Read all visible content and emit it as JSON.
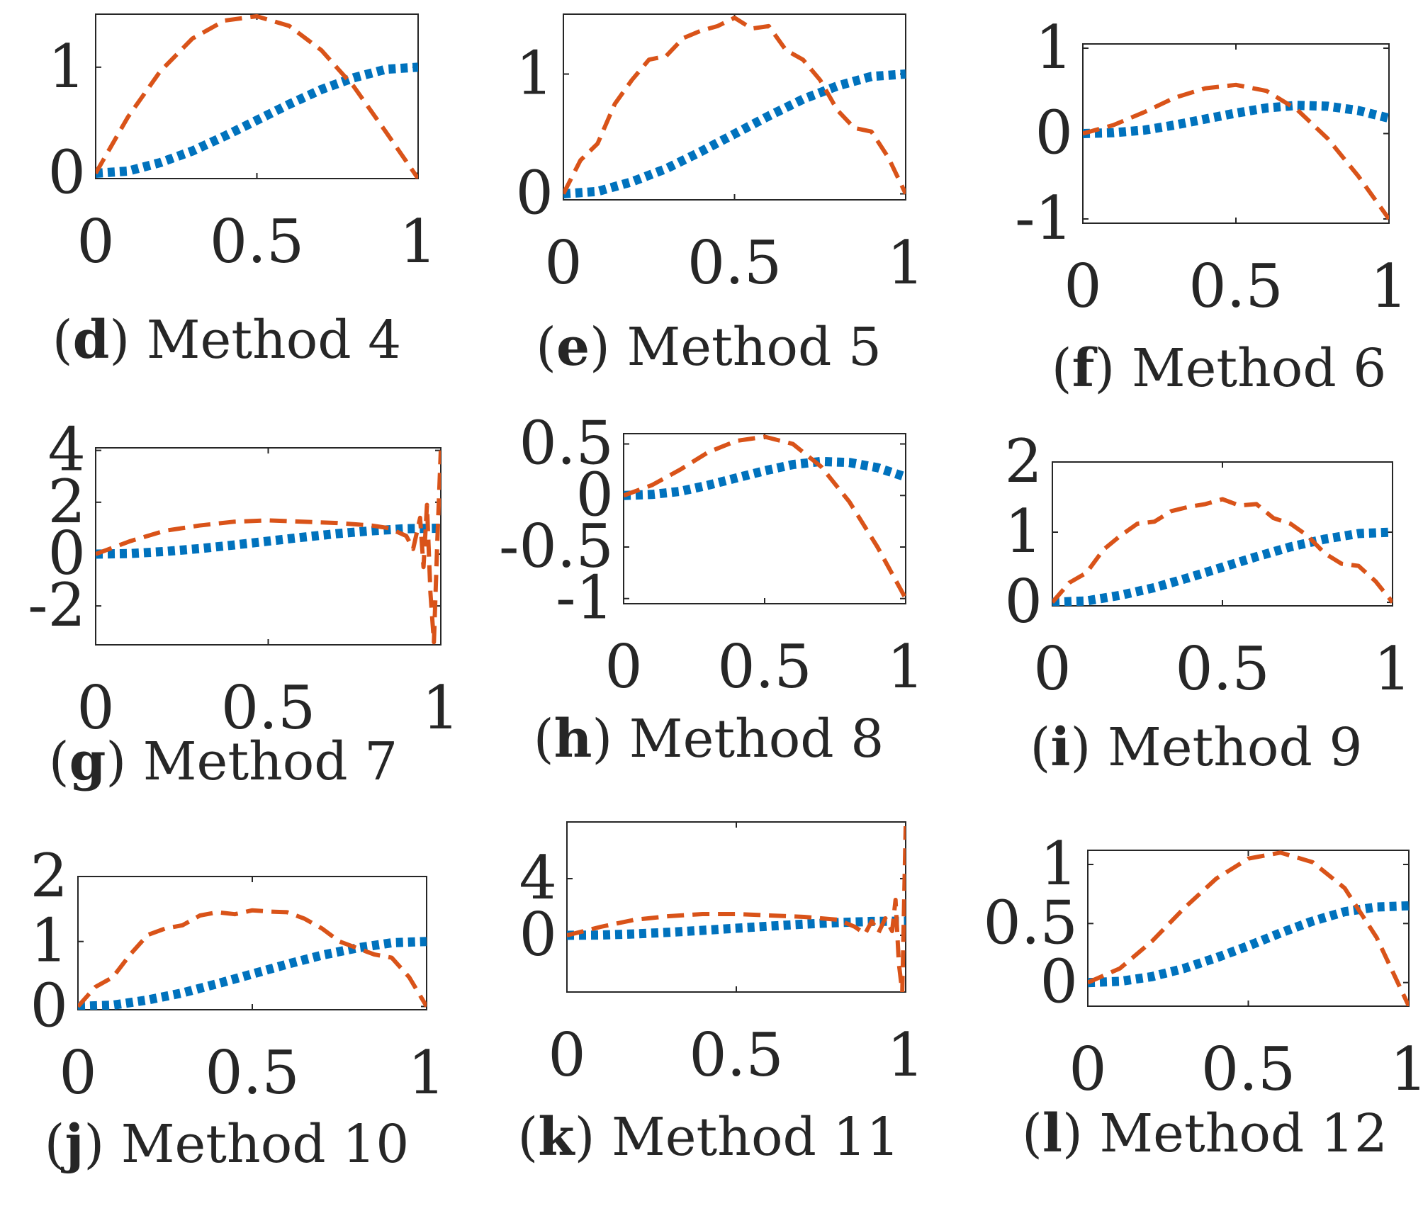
{
  "colors": {
    "series_a": "#0072BD",
    "series_b": "#D95319",
    "axis": "#262626",
    "background": "#ffffff"
  },
  "panels": [
    {
      "letter": "d",
      "caption": "Method 4"
    },
    {
      "letter": "e",
      "caption": "Method 5"
    },
    {
      "letter": "f",
      "caption": "Method 6"
    },
    {
      "letter": "g",
      "caption": "Method 7"
    },
    {
      "letter": "h",
      "caption": "Method 8"
    },
    {
      "letter": "i",
      "caption": "Method 9"
    },
    {
      "letter": "j",
      "caption": "Method 10"
    },
    {
      "letter": "k",
      "caption": "Method 11"
    },
    {
      "letter": "l",
      "caption": "Method 12"
    }
  ],
  "chart_data": [
    {
      "panel": "d",
      "type": "line",
      "title": "",
      "xlabel": "",
      "ylabel": "",
      "xlim": [
        0,
        1
      ],
      "ylim": [
        -0.05,
        1.5
      ],
      "xticks": [
        "0",
        "0.5",
        "1"
      ],
      "yticks": [
        "0",
        "1"
      ],
      "ytick_values": [
        0,
        1
      ],
      "grid": false,
      "legend": "none",
      "series": [
        {
          "style": "dotted",
          "x": [
            0,
            0.1,
            0.2,
            0.3,
            0.4,
            0.5,
            0.6,
            0.7,
            0.8,
            0.9,
            1.0
          ],
          "values": [
            0,
            0.02,
            0.1,
            0.21,
            0.35,
            0.5,
            0.65,
            0.79,
            0.9,
            0.98,
            1.0
          ]
        },
        {
          "style": "dashed",
          "x": [
            0,
            0.1,
            0.2,
            0.3,
            0.4,
            0.5,
            0.6,
            0.7,
            0.8,
            0.9,
            1.0
          ],
          "values": [
            0,
            0.53,
            0.96,
            1.27,
            1.44,
            1.48,
            1.39,
            1.16,
            0.82,
            0.39,
            -0.05
          ]
        }
      ]
    },
    {
      "panel": "e",
      "type": "line",
      "title": "",
      "xlabel": "",
      "ylabel": "",
      "xlim": [
        0,
        1
      ],
      "ylim": [
        -0.05,
        1.5
      ],
      "xticks": [
        "0",
        "0.5",
        "1"
      ],
      "yticks": [
        "0",
        "1"
      ],
      "ytick_values": [
        0,
        1
      ],
      "grid": false,
      "legend": "none",
      "series": [
        {
          "style": "dotted",
          "x": [
            0,
            0.1,
            0.2,
            0.3,
            0.4,
            0.5,
            0.6,
            0.7,
            0.8,
            0.9,
            1.0
          ],
          "values": [
            0,
            0.02,
            0.1,
            0.21,
            0.35,
            0.5,
            0.65,
            0.79,
            0.9,
            0.98,
            1.0
          ]
        },
        {
          "style": "dashed",
          "x": [
            0,
            0.05,
            0.1,
            0.15,
            0.2,
            0.25,
            0.3,
            0.35,
            0.4,
            0.45,
            0.5,
            0.55,
            0.6,
            0.65,
            0.7,
            0.75,
            0.8,
            0.85,
            0.9,
            0.95,
            1.0
          ],
          "values": [
            0,
            0.28,
            0.42,
            0.75,
            0.95,
            1.12,
            1.15,
            1.3,
            1.36,
            1.4,
            1.47,
            1.38,
            1.4,
            1.2,
            1.12,
            0.95,
            0.7,
            0.55,
            0.52,
            0.3,
            0.0
          ]
        }
      ]
    },
    {
      "panel": "f",
      "type": "line",
      "title": "",
      "xlabel": "",
      "ylabel": "",
      "xlim": [
        0,
        1
      ],
      "ylim": [
        -1.05,
        1.05
      ],
      "xticks": [
        "0",
        "0.5",
        "1"
      ],
      "yticks": [
        "-1",
        "0",
        "1"
      ],
      "ytick_values": [
        -1,
        0,
        1
      ],
      "grid": false,
      "legend": "none",
      "series": [
        {
          "style": "dotted",
          "x": [
            0,
            0.1,
            0.2,
            0.3,
            0.4,
            0.5,
            0.6,
            0.7,
            0.8,
            0.9,
            1.0
          ],
          "values": [
            0,
            0.01,
            0.04,
            0.1,
            0.17,
            0.24,
            0.3,
            0.33,
            0.32,
            0.27,
            0.18
          ]
        },
        {
          "style": "dashed",
          "x": [
            0,
            0.1,
            0.2,
            0.3,
            0.4,
            0.5,
            0.6,
            0.7,
            0.8,
            0.9,
            1.0
          ],
          "values": [
            0,
            0.1,
            0.25,
            0.42,
            0.53,
            0.57,
            0.5,
            0.28,
            -0.06,
            -0.5,
            -1.0
          ]
        }
      ]
    },
    {
      "panel": "g",
      "type": "line",
      "title": "",
      "xlabel": "",
      "ylabel": "",
      "xlim": [
        0,
        1
      ],
      "ylim": [
        -3.5,
        4.1
      ],
      "xticks": [
        "0",
        "0.5",
        "1"
      ],
      "yticks": [
        "-2",
        "0",
        "2",
        "4"
      ],
      "ytick_values": [
        -2,
        0,
        2,
        4
      ],
      "grid": false,
      "legend": "none",
      "series": [
        {
          "style": "dotted",
          "x": [
            0,
            0.1,
            0.2,
            0.3,
            0.4,
            0.5,
            0.6,
            0.7,
            0.8,
            0.9,
            1.0
          ],
          "values": [
            0,
            0.02,
            0.1,
            0.21,
            0.35,
            0.5,
            0.65,
            0.79,
            0.9,
            0.98,
            1.0
          ]
        },
        {
          "style": "dashed",
          "x": [
            0,
            0.1,
            0.2,
            0.3,
            0.4,
            0.5,
            0.6,
            0.7,
            0.8,
            0.85,
            0.9,
            0.92,
            0.94,
            0.95,
            0.96,
            0.97,
            0.98,
            0.99,
            1.0
          ],
          "values": [
            0,
            0.5,
            0.9,
            1.1,
            1.25,
            1.3,
            1.25,
            1.2,
            1.1,
            1.0,
            0.7,
            0.2,
            1.4,
            -0.5,
            1.9,
            -1.5,
            -3.4,
            0.5,
            4.0
          ]
        }
      ]
    },
    {
      "panel": "h",
      "type": "line",
      "title": "",
      "xlabel": "",
      "ylabel": "",
      "xlim": [
        0,
        1
      ],
      "ylim": [
        -1.05,
        0.6
      ],
      "xticks": [
        "0",
        "0.5",
        "1"
      ],
      "yticks": [
        "-1",
        "-0.5",
        "0",
        "0.5"
      ],
      "ytick_values": [
        -1,
        -0.5,
        0,
        0.5
      ],
      "grid": false,
      "legend": "none",
      "series": [
        {
          "style": "dotted",
          "x": [
            0,
            0.1,
            0.2,
            0.3,
            0.4,
            0.5,
            0.6,
            0.7,
            0.8,
            0.9,
            1.0
          ],
          "values": [
            0,
            0.01,
            0.04,
            0.1,
            0.17,
            0.24,
            0.3,
            0.33,
            0.32,
            0.27,
            0.18
          ]
        },
        {
          "style": "dashed",
          "x": [
            0,
            0.1,
            0.2,
            0.3,
            0.4,
            0.5,
            0.6,
            0.7,
            0.8,
            0.9,
            1.0
          ],
          "values": [
            0,
            0.1,
            0.25,
            0.42,
            0.53,
            0.57,
            0.5,
            0.28,
            -0.06,
            -0.5,
            -1.0
          ]
        }
      ]
    },
    {
      "panel": "i",
      "type": "line",
      "title": "",
      "xlabel": "",
      "ylabel": "",
      "xlim": [
        0,
        1
      ],
      "ylim": [
        -0.05,
        2.0
      ],
      "xticks": [
        "0",
        "0.5",
        "1"
      ],
      "yticks": [
        "0",
        "1",
        "2"
      ],
      "ytick_values": [
        0,
        1,
        2
      ],
      "grid": false,
      "legend": "none",
      "series": [
        {
          "style": "dotted",
          "x": [
            0,
            0.1,
            0.2,
            0.3,
            0.4,
            0.5,
            0.6,
            0.7,
            0.8,
            0.9,
            1.0
          ],
          "values": [
            0,
            0.02,
            0.1,
            0.21,
            0.35,
            0.5,
            0.65,
            0.79,
            0.9,
            0.98,
            1.0
          ]
        },
        {
          "style": "dashed",
          "x": [
            0,
            0.05,
            0.1,
            0.15,
            0.2,
            0.25,
            0.3,
            0.35,
            0.4,
            0.45,
            0.5,
            0.55,
            0.6,
            0.65,
            0.7,
            0.75,
            0.8,
            0.85,
            0.9,
            0.95,
            1.0
          ],
          "values": [
            0,
            0.28,
            0.42,
            0.75,
            0.95,
            1.12,
            1.15,
            1.3,
            1.36,
            1.4,
            1.47,
            1.38,
            1.4,
            1.2,
            1.12,
            0.95,
            0.7,
            0.55,
            0.52,
            0.3,
            0.0
          ]
        }
      ]
    },
    {
      "panel": "j",
      "type": "line",
      "title": "",
      "xlabel": "",
      "ylabel": "",
      "xlim": [
        0,
        1
      ],
      "ylim": [
        -0.05,
        2.0
      ],
      "xticks": [
        "0",
        "0.5",
        "1"
      ],
      "yticks": [
        "0",
        "1",
        "2"
      ],
      "ytick_values": [
        0,
        1,
        2
      ],
      "grid": false,
      "legend": "none",
      "series": [
        {
          "style": "dotted",
          "x": [
            0,
            0.1,
            0.2,
            0.3,
            0.4,
            0.5,
            0.6,
            0.7,
            0.8,
            0.9,
            1.0
          ],
          "values": [
            0,
            0.02,
            0.1,
            0.21,
            0.35,
            0.5,
            0.65,
            0.79,
            0.9,
            0.98,
            1.0
          ]
        },
        {
          "style": "dashed",
          "x": [
            0,
            0.05,
            0.1,
            0.15,
            0.2,
            0.25,
            0.3,
            0.35,
            0.4,
            0.45,
            0.5,
            0.55,
            0.6,
            0.65,
            0.7,
            0.75,
            0.8,
            0.85,
            0.9,
            0.95,
            1.0
          ],
          "values": [
            0,
            0.3,
            0.45,
            0.8,
            1.1,
            1.2,
            1.25,
            1.4,
            1.45,
            1.42,
            1.48,
            1.46,
            1.45,
            1.35,
            1.2,
            1.0,
            0.9,
            0.8,
            0.75,
            0.45,
            0.0
          ]
        }
      ]
    },
    {
      "panel": "k",
      "type": "line",
      "title": "",
      "xlabel": "",
      "ylabel": "",
      "xlim": [
        0,
        1
      ],
      "ylim": [
        -4.0,
        8.0
      ],
      "xticks": [
        "0",
        "0.5",
        "1"
      ],
      "yticks": [
        "0",
        "4"
      ],
      "ytick_values": [
        0,
        4
      ],
      "grid": false,
      "legend": "none",
      "series": [
        {
          "style": "dotted",
          "x": [
            0,
            0.1,
            0.2,
            0.3,
            0.4,
            0.5,
            0.6,
            0.7,
            0.8,
            0.9,
            1.0
          ],
          "values": [
            0,
            0.02,
            0.1,
            0.21,
            0.35,
            0.5,
            0.65,
            0.79,
            0.9,
            0.98,
            1.0
          ]
        },
        {
          "style": "dashed",
          "x": [
            0,
            0.1,
            0.2,
            0.3,
            0.4,
            0.5,
            0.6,
            0.7,
            0.8,
            0.85,
            0.88,
            0.9,
            0.92,
            0.94,
            0.96,
            0.97,
            0.98,
            0.99,
            1.0
          ],
          "values": [
            0,
            0.6,
            1.1,
            1.35,
            1.5,
            1.5,
            1.4,
            1.3,
            1.1,
            0.6,
            0.1,
            1.0,
            0.2,
            1.2,
            0.3,
            2.5,
            -2.0,
            -4.0,
            7.7
          ]
        }
      ]
    },
    {
      "panel": "l",
      "type": "line",
      "title": "",
      "xlabel": "",
      "ylabel": "",
      "xlim": [
        0,
        1
      ],
      "ylim": [
        -0.2,
        1.12
      ],
      "xticks": [
        "0",
        "0.5",
        "1"
      ],
      "yticks": [
        "0",
        "0.5",
        "1"
      ],
      "ytick_values": [
        0,
        0.5,
        1
      ],
      "grid": false,
      "legend": "none",
      "series": [
        {
          "style": "dotted",
          "x": [
            0,
            0.1,
            0.2,
            0.3,
            0.4,
            0.5,
            0.6,
            0.7,
            0.8,
            0.9,
            1.0
          ],
          "values": [
            0,
            0.01,
            0.05,
            0.12,
            0.21,
            0.31,
            0.42,
            0.52,
            0.6,
            0.64,
            0.65
          ]
        },
        {
          "style": "dashed",
          "x": [
            0,
            0.1,
            0.2,
            0.3,
            0.4,
            0.5,
            0.6,
            0.7,
            0.8,
            0.9,
            1.0
          ],
          "values": [
            0,
            0.12,
            0.35,
            0.63,
            0.88,
            1.05,
            1.1,
            1.02,
            0.8,
            0.38,
            -0.2
          ]
        }
      ]
    }
  ]
}
